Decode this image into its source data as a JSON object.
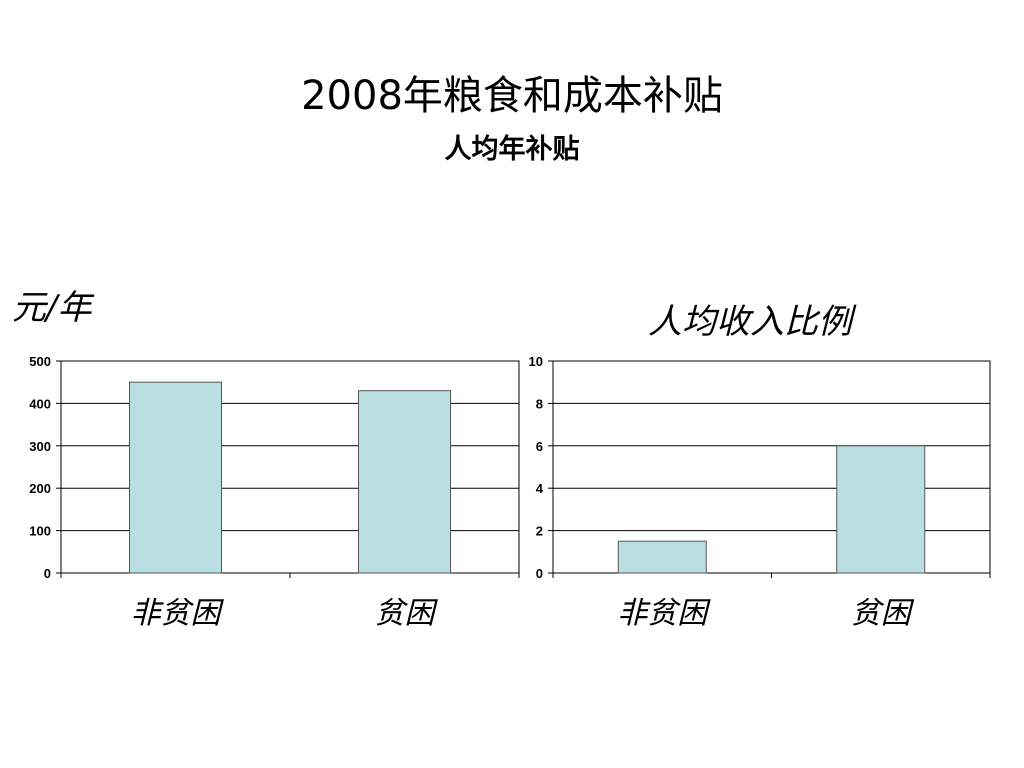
{
  "slide": {
    "title": "2008年粮食和成本补贴",
    "subtitle": "人均年补贴"
  },
  "chart_data": [
    {
      "type": "bar",
      "ylabel": "元/年",
      "categories": [
        "非贫困",
        "贫困"
      ],
      "values": [
        450,
        430
      ],
      "ylim": [
        0,
        500
      ],
      "yticks": [
        0,
        100,
        200,
        300,
        400,
        500
      ],
      "grid": true,
      "bar_color": "#b9dfe3"
    },
    {
      "type": "bar",
      "title": "人均收入比例",
      "categories": [
        "非贫困",
        "贫困"
      ],
      "values": [
        1.5,
        6
      ],
      "ylim": [
        0,
        10
      ],
      "yticks": [
        0,
        2,
        4,
        6,
        8,
        10
      ],
      "grid": true,
      "bar_color": "#b9dfe3"
    }
  ]
}
